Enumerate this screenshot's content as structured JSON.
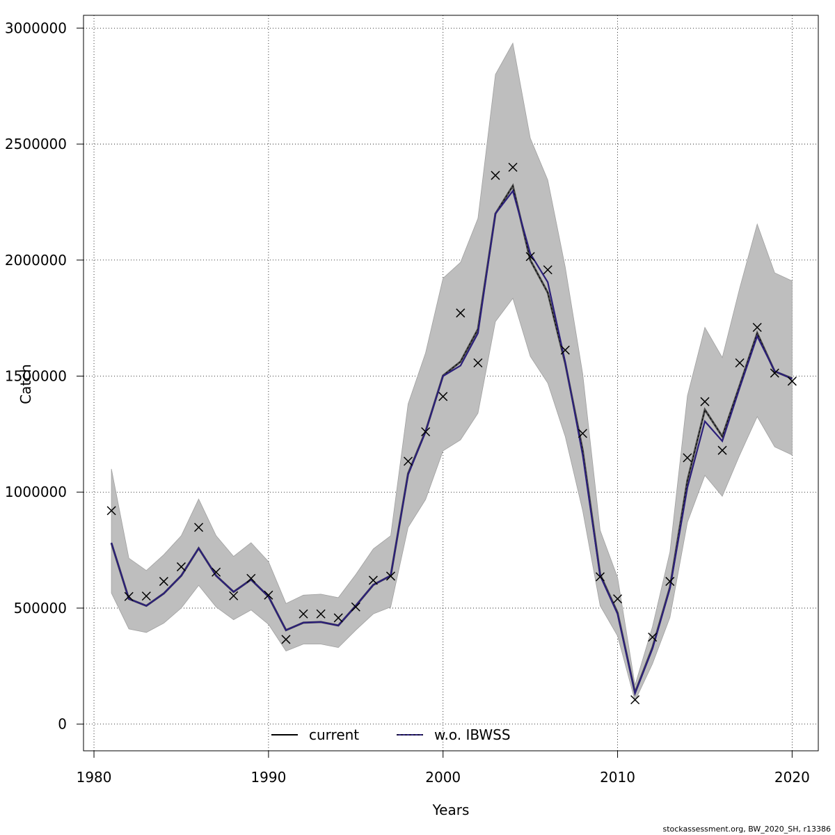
{
  "chart_data": {
    "type": "line",
    "xlabel": "Years",
    "ylabel": "Catch",
    "xlim": [
      1979.4,
      2021.5
    ],
    "ylim": [
      -115000,
      3055000
    ],
    "x_ticks": [
      1980,
      1990,
      2000,
      2010,
      2020
    ],
    "y_ticks": [
      0,
      500000,
      1000000,
      1500000,
      2000000,
      2500000,
      3000000
    ],
    "grid": true,
    "legend_position": "bottom-center",
    "x": [
      1981,
      1982,
      1983,
      1984,
      1985,
      1986,
      1987,
      1988,
      1989,
      1990,
      1991,
      1992,
      1993,
      1994,
      1995,
      1996,
      1997,
      1998,
      1999,
      2000,
      2001,
      2002,
      2003,
      2004,
      2005,
      2006,
      2007,
      2008,
      2009,
      2010,
      2011,
      2012,
      2013,
      2014,
      2015,
      2016,
      2017,
      2018,
      2019,
      2020
    ],
    "series": [
      {
        "name": "current",
        "color": "#000000",
        "values": [
          780000,
          540000,
          510000,
          563000,
          640000,
          758000,
          640000,
          570000,
          623000,
          550000,
          405000,
          437000,
          440000,
          425000,
          510000,
          600000,
          640000,
          1080000,
          1262000,
          1502000,
          1562000,
          1702000,
          2200000,
          2320000,
          2000000,
          1860000,
          1555000,
          1180000,
          645000,
          480000,
          135000,
          330000,
          590000,
          1050000,
          1355000,
          1240000,
          1460000,
          1685000,
          1520000,
          1490000
        ]
      },
      {
        "name": "w.o. IBWSS",
        "color": "#2b1f7a",
        "values": [
          782000,
          540000,
          510000,
          563000,
          640000,
          758000,
          640000,
          570000,
          623000,
          550000,
          405000,
          437000,
          440000,
          425000,
          510000,
          600000,
          640000,
          1075000,
          1260000,
          1500000,
          1545000,
          1685000,
          2200000,
          2298000,
          2028000,
          1905000,
          1560000,
          1160000,
          640000,
          475000,
          133000,
          325000,
          585000,
          1020000,
          1305000,
          1220000,
          1450000,
          1672000,
          1522000,
          1488000
        ]
      },
      {
        "name": "confidence band",
        "color": "#bebebe",
        "lower": [
          565000,
          410000,
          395000,
          435000,
          500000,
          598000,
          505000,
          450000,
          492000,
          430000,
          315000,
          345000,
          345000,
          330000,
          405000,
          475000,
          505000,
          848000,
          968000,
          1178000,
          1225000,
          1340000,
          1735000,
          1835000,
          1585000,
          1470000,
          1240000,
          920000,
          510000,
          380000,
          100000,
          260000,
          460000,
          870000,
          1072000,
          982000,
          1160000,
          1325000,
          1195000,
          1160000
        ],
        "upper": [
          1100000,
          715000,
          662000,
          730000,
          812000,
          970000,
          812000,
          723000,
          782000,
          700000,
          520000,
          556000,
          560000,
          545000,
          645000,
          755000,
          812000,
          1380000,
          1600000,
          1922000,
          1990000,
          2180000,
          2800000,
          2935000,
          2525000,
          2345000,
          1970000,
          1510000,
          835000,
          632000,
          168000,
          420000,
          742000,
          1415000,
          1710000,
          1580000,
          1880000,
          2155000,
          1945000,
          1910000
        ]
      },
      {
        "name": "observed",
        "marker": "x",
        "color": "#000000",
        "values": [
          920000,
          550000,
          552000,
          615000,
          678000,
          848000,
          655000,
          553000,
          628000,
          556000,
          365000,
          475000,
          475000,
          458000,
          505000,
          620000,
          638000,
          1133000,
          1260000,
          1412000,
          1772000,
          1557000,
          2365000,
          2400000,
          2015000,
          1958000,
          1612000,
          1253000,
          635000,
          540000,
          105000,
          375000,
          615000,
          1148000,
          1390000,
          1180000,
          1557000,
          1710000,
          1513000,
          1478000
        ]
      }
    ],
    "legend": [
      {
        "label": "current",
        "color": "#000000"
      },
      {
        "label": "w.o. IBWSS",
        "color": "#2b1f7a"
      }
    ]
  },
  "footer": "stockassessment.org, BW_2020_SH, r13386"
}
